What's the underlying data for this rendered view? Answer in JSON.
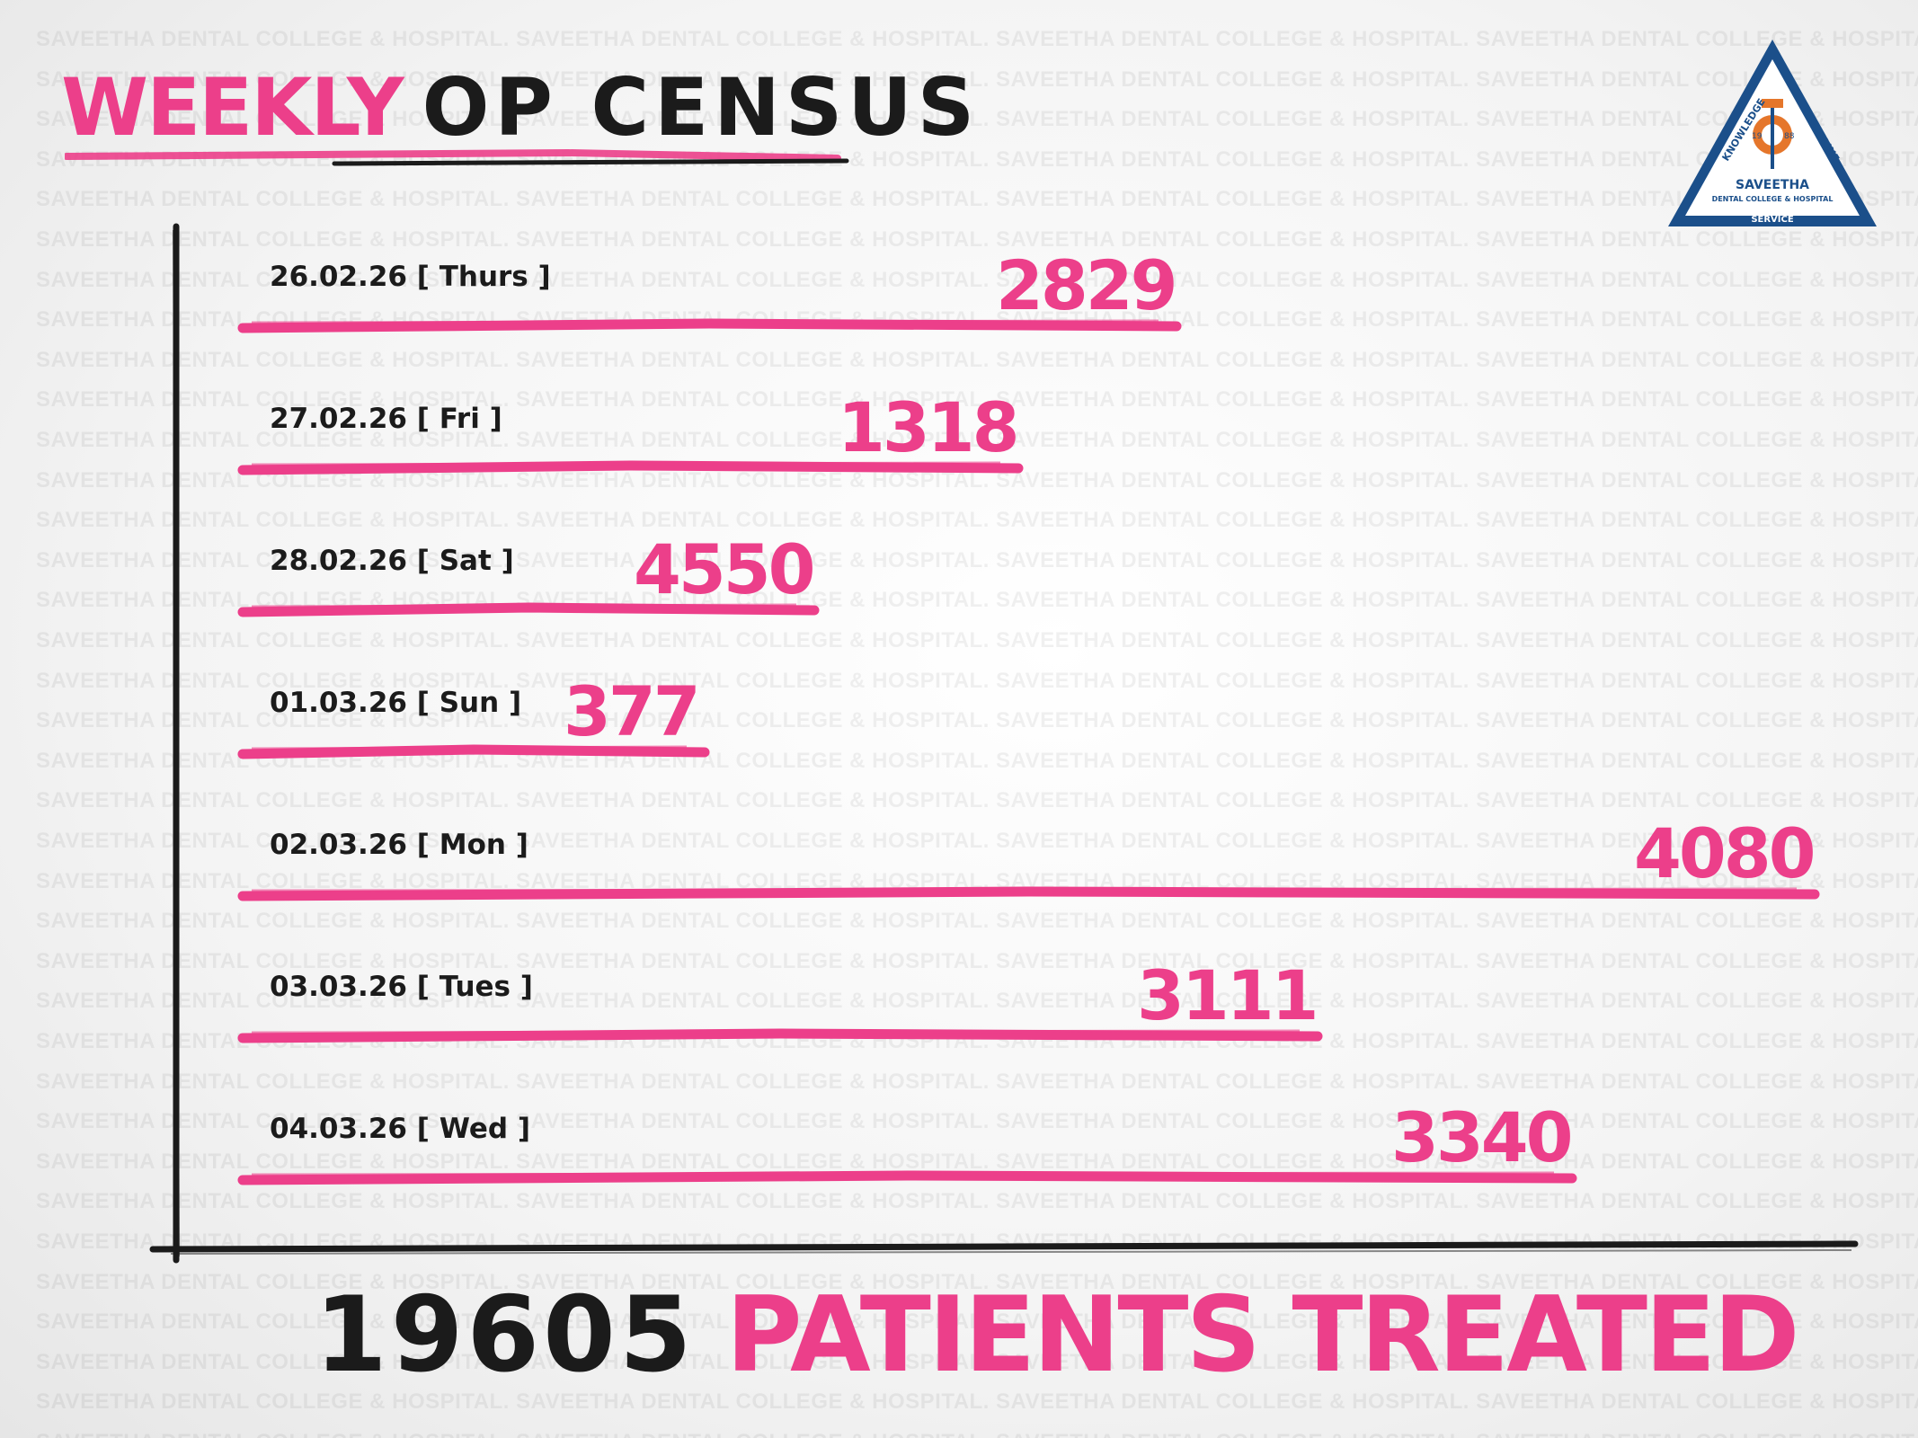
{
  "watermark_text": "SAVEETHA DENTAL COLLEGE & HOSPITAL",
  "title": {
    "highlight": "WEEKLY",
    "rest": "OP CENSUS"
  },
  "chart_data": {
    "type": "bar",
    "orientation": "horizontal",
    "title": "WEEKLY OP CENSUS",
    "categories": [
      "26.02.26 [ Thurs ]",
      "27.02.26 [ Fri ]",
      "28.02.26 [ Sat ]",
      "01.03.26 [ Sun ]",
      "02.03.26 [ Mon ]",
      "03.03.26 [ Tues ]",
      "04.03.26 [ Wed ]"
    ],
    "values": [
      2829,
      1318,
      4550,
      377,
      4080,
      3111,
      3340
    ],
    "xlabel": "",
    "ylabel": ""
  },
  "total": {
    "number": "19605",
    "label": "PATIENTS TREATED"
  },
  "logo": {
    "top_left": "KNOWLEDGE",
    "top_right": "DISCIPLINE",
    "year_left": "19",
    "year_right": "88",
    "name": "SAVEETHA",
    "subtitle": "DENTAL COLLEGE & HOSPITAL",
    "bottom": "SERVICE"
  },
  "colors": {
    "accent": "#ec3f8a",
    "ink": "#1b1b1b",
    "logo_blue": "#1b4f8a",
    "logo_orange": "#e5762b"
  }
}
